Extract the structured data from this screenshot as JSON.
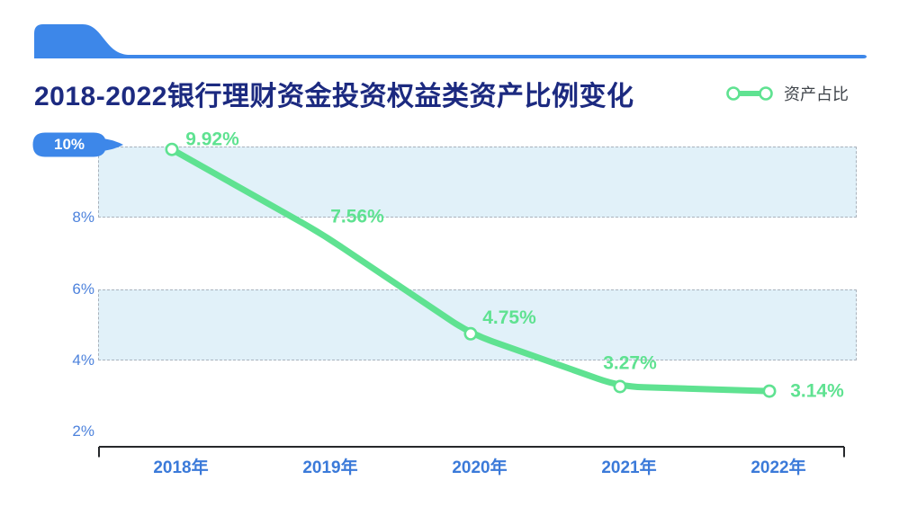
{
  "chart_data": {
    "type": "line",
    "title": "2018-2022银行理财资金投资权益类资产比例变化",
    "categories": [
      "2018年",
      "2019年",
      "2020年",
      "2021年",
      "2022年"
    ],
    "series": [
      {
        "name": "资产占比",
        "values": [
          9.92,
          7.56,
          4.75,
          3.27,
          3.14
        ],
        "point_labels": [
          "9.92%",
          "7.56%",
          "4.75%",
          "3.27%",
          "3.14%"
        ]
      }
    ],
    "y_tick_labels": [
      "10%",
      "8%",
      "6%",
      "4%",
      "2%"
    ],
    "y_tick_values": [
      10,
      8,
      6,
      4,
      2
    ],
    "ylim": [
      2,
      10
    ],
    "bands": [
      {
        "from": 8,
        "to": 10
      },
      {
        "from": 4,
        "to": 6
      }
    ],
    "grid": "dashed-band-borders",
    "legend_position": "top-right",
    "smooth": true,
    "colors": {
      "accent_blue": "#3d87e9",
      "title_navy": "#1c2a80",
      "axis_label_blue": "#4d82dc",
      "x_label_blue": "#3b7ad9",
      "series_green": "#5fe291",
      "band_fill": "#e1f1f9",
      "band_border": "#a9b2bc",
      "axis_line": "#26282b",
      "legend_text": "#40454b"
    }
  }
}
